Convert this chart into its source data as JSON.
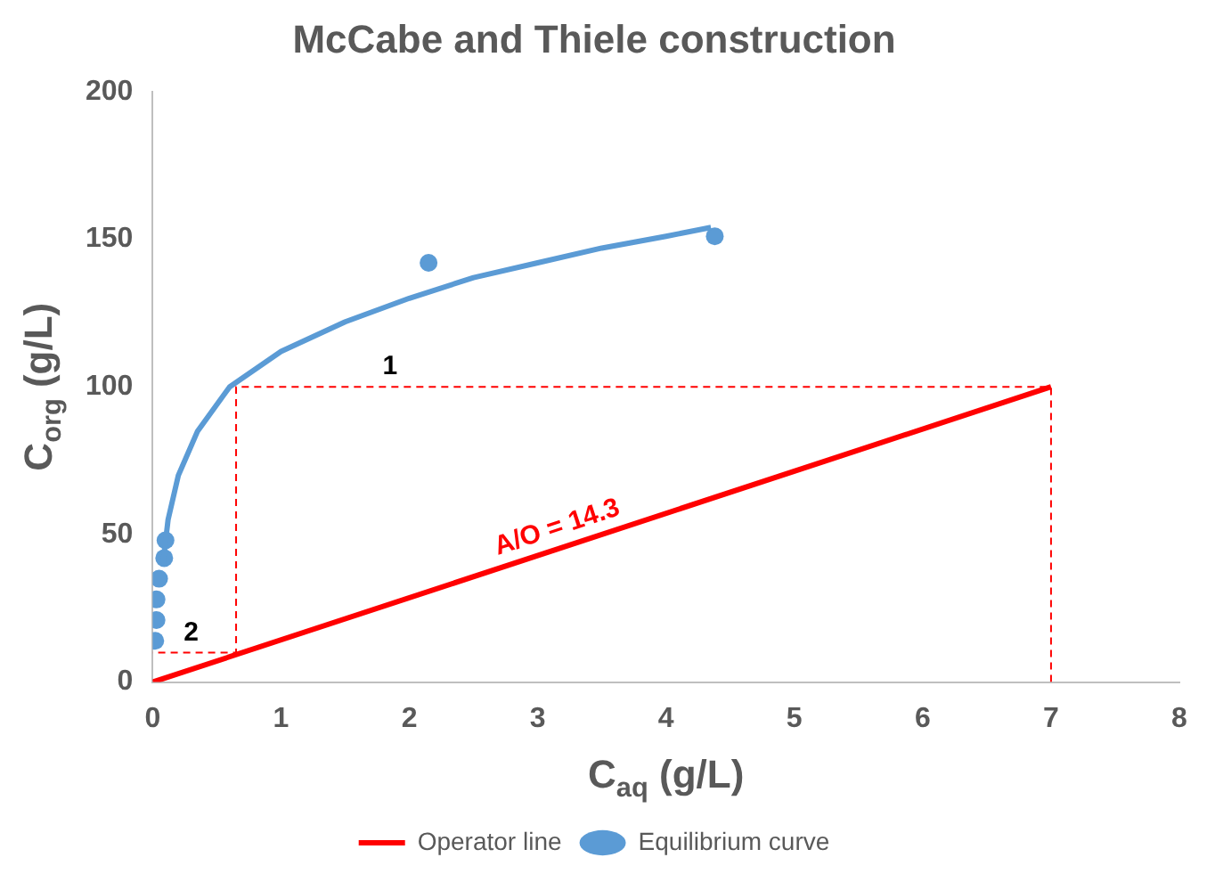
{
  "chart_data": {
    "type": "scatter",
    "title": "McCabe and Thiele construction",
    "xlabel": "C$_{aq}$ (g/L)",
    "ylabel": "C$_{org}$ (g/L)",
    "xlim": [
      0,
      8
    ],
    "xticks": [
      0,
      1,
      2,
      3,
      4,
      5,
      6,
      7,
      8
    ],
    "ylim": [
      0,
      200
    ],
    "yticks": [
      0,
      50,
      100,
      150,
      200
    ],
    "grid": false,
    "legend": "bottom",
    "series": [
      {
        "name": "Operator line",
        "type": "line",
        "color": "#ff0000",
        "marker": "none",
        "line_style": "solid",
        "x": [
          0,
          7
        ],
        "values": [
          0,
          100
        ]
      },
      {
        "type": "line",
        "color": "#ff0000",
        "marker": "none",
        "line_style": "dashed",
        "x": [
          7,
          7,
          0.65,
          0.65,
          0
        ],
        "values": [
          0,
          100,
          100,
          10,
          10
        ]
      },
      {
        "type": "line",
        "color": "#5b9bd5",
        "marker": "none",
        "line_style": "solid",
        "x": [
          0.08,
          0.12,
          0.2,
          0.35,
          0.6,
          1,
          1.5,
          2,
          2.5,
          3,
          3.5,
          4,
          4.35
        ],
        "values": [
          40,
          55,
          70,
          85,
          100,
          112,
          122,
          130,
          137,
          142,
          147,
          151,
          154
        ]
      },
      {
        "name": "Equilibrium curve",
        "color": "#5b9bd5",
        "marker": "circle",
        "x": [
          0.02,
          0.03,
          0.03,
          0.05,
          0.09,
          0.1,
          2.15,
          4.38
        ],
        "values": [
          14,
          21,
          28,
          35,
          42,
          48,
          142,
          151
        ]
      }
    ],
    "annotations": [
      {
        "text": "1",
        "x": 1.85,
        "y": 100
      },
      {
        "text": "2",
        "x": 0.3,
        "y": 10
      },
      {
        "text": "A/O = 14.3",
        "x": 3.2,
        "y": 46
      }
    ]
  }
}
